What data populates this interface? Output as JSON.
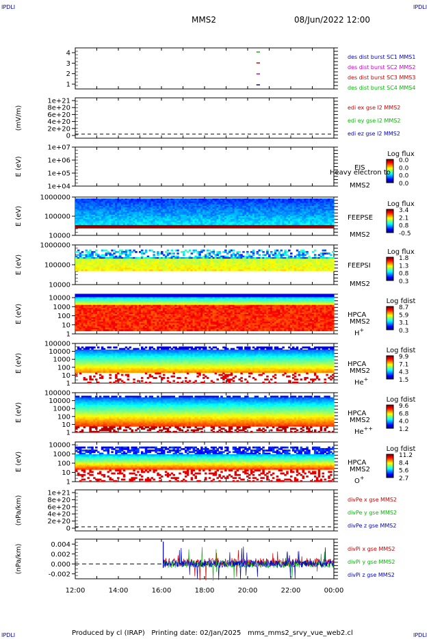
{
  "header": {
    "corner_label": "IPDLI",
    "spacecraft": "MMS2",
    "date": "08/Jun/2022 12:00"
  },
  "footer": {
    "produced_by": "Produced by cl (IRAP)",
    "printing_date": "Printing date: 02/Jan/2025",
    "file": "mms_mms2_srvy_vue_web2.cl"
  },
  "chart_data": [
    {
      "type": "line",
      "panel": "burst",
      "ylabel": "",
      "yticks": [
        "1",
        "2",
        "3",
        "4"
      ],
      "legend": [
        {
          "label": "des dist burst SC1 MMS1",
          "color": "#0000cc"
        },
        {
          "label": "des dist burst SC2 MMS2",
          "color": "#cc00cc"
        },
        {
          "label": "des dist burst SC3 MMS3",
          "color": "#cc0000"
        },
        {
          "label": "des dist burst SC4 MMS4",
          "color": "#00bb00"
        }
      ],
      "series": [
        {
          "name": "des dist burst SC1 MMS1",
          "x": [
            "20:30",
            "20:40"
          ],
          "y": [
            1,
            1
          ]
        },
        {
          "name": "des dist burst SC2 MMS2",
          "x": [
            "20:30",
            "20:40"
          ],
          "y": [
            2,
            2
          ]
        },
        {
          "name": "des dist burst SC3 MMS3",
          "x": [
            "20:30",
            "20:40"
          ],
          "y": [
            3,
            3
          ]
        },
        {
          "name": "des dist burst SC4 MMS4",
          "x": [
            "20:30",
            "20:40"
          ],
          "y": [
            4,
            4
          ]
        }
      ]
    },
    {
      "type": "line",
      "panel": "edi",
      "ylabel": "(mV/m)",
      "yticks": [
        "1e+21",
        "8e+20",
        "6e+20",
        "4e+20",
        "2e+20",
        "0"
      ],
      "legend": [
        {
          "label": "edi ex gse l2 MMS2",
          "color": "#cc0000"
        },
        {
          "label": "edi ey gse l2 MMS2",
          "color": "#00bb00"
        },
        {
          "label": "edi ez gse l2 MMS2",
          "color": "#0000cc"
        }
      ],
      "series": []
    },
    {
      "type": "heatmap",
      "panel": "eis",
      "ylabel": "E (eV)",
      "yticks": [
        "1e+07",
        "1e+06",
        "1e+05",
        "1e+04"
      ],
      "instrument": "EIS",
      "sc": "MMS2",
      "overlay_text": "Heavy electron to",
      "cbar_title": "Log flux",
      "cbar_ticks": [
        "0.0",
        "0.0",
        "0.0",
        "0.0"
      ]
    },
    {
      "type": "heatmap",
      "panel": "feepse",
      "ylabel": "E (eV)",
      "yticks": [
        "1000000",
        "100000",
        "10000"
      ],
      "instrument": "FEEPSE",
      "sc": "MMS2",
      "cbar_title": "Log flux",
      "cbar_ticks": [
        "3.4",
        "2.1",
        "0.8",
        "-0.5"
      ]
    },
    {
      "type": "heatmap",
      "panel": "feepsi",
      "ylabel": "E (eV)",
      "yticks": [
        "1000000",
        "100000",
        "10000"
      ],
      "instrument": "FEEPSI",
      "sc": "MMS2",
      "cbar_title": "Log flux",
      "cbar_ticks": [
        "1.8",
        "1.3",
        "0.8",
        "0.3"
      ]
    },
    {
      "type": "heatmap",
      "panel": "hpca_h",
      "ylabel": "E (eV)",
      "yticks": [
        "10000",
        "1000",
        "100",
        "10",
        "1"
      ],
      "instrument": "HPCA",
      "sc": "MMS2",
      "species": "H",
      "charge": "+",
      "cbar_title": "Log fdist",
      "cbar_ticks": [
        "8.7",
        "5.9",
        "3.1",
        "0.3"
      ]
    },
    {
      "type": "heatmap",
      "panel": "hpca_he1",
      "ylabel": "E (eV)",
      "yticks": [
        "100000",
        "10000",
        "1000",
        "100",
        "10",
        "1"
      ],
      "instrument": "HPCA",
      "sc": "MMS2",
      "species": "He",
      "charge": "+",
      "cbar_title": "Log fdist",
      "cbar_ticks": [
        "9.9",
        "7.1",
        "4.3",
        "1.5"
      ]
    },
    {
      "type": "heatmap",
      "panel": "hpca_he2",
      "ylabel": "E (eV)",
      "yticks": [
        "100000",
        "10000",
        "1000",
        "100",
        "10",
        "1"
      ],
      "instrument": "HPCA",
      "sc": "MMS2",
      "species": "He",
      "charge": "++",
      "cbar_title": "Log fdist",
      "cbar_ticks": [
        "9.6",
        "6.8",
        "4.0",
        "1.2"
      ]
    },
    {
      "type": "heatmap",
      "panel": "hpca_o",
      "ylabel": "E (eV)",
      "yticks": [
        "10000",
        "1000",
        "100",
        "10",
        "1"
      ],
      "instrument": "HPCA",
      "sc": "MMS2",
      "species": "O",
      "charge": "+",
      "cbar_title": "Log fdist",
      "cbar_ticks": [
        "11.2",
        "8.4",
        "5.6",
        "2.7"
      ]
    },
    {
      "type": "line",
      "panel": "divpe",
      "ylabel": "(nPa/km)",
      "yticks": [
        "1e+21",
        "8e+20",
        "6e+20",
        "4e+20",
        "2e+20",
        "0"
      ],
      "legend": [
        {
          "label": "divPe x gse MMS2",
          "color": "#cc0000"
        },
        {
          "label": "divPe y gse MMS2",
          "color": "#00bb00"
        },
        {
          "label": "divPe z gse MMS2",
          "color": "#0000cc"
        }
      ],
      "series": []
    },
    {
      "type": "line",
      "panel": "divpi",
      "ylabel": "(nPa/km)",
      "yticks": [
        "0.004",
        "0.002",
        "0.000",
        "-0.002"
      ],
      "ylim": [
        -0.003,
        0.005
      ],
      "legend": [
        {
          "label": "divPi x gse MMS2",
          "color": "#cc0000"
        },
        {
          "label": "divPi y gse MMS2",
          "color": "#00bb00"
        },
        {
          "label": "divPi z gse MMS2",
          "color": "#0000cc"
        }
      ],
      "series": [
        {
          "name": "divPi x gse MMS2",
          "x_start": "16:05",
          "x_end": "00:00",
          "typical_range": [
            -0.0005,
            0.0012
          ]
        },
        {
          "name": "divPi y gse MMS2",
          "x_start": "16:05",
          "x_end": "00:00",
          "typical_range": [
            -0.0008,
            0.0006
          ]
        },
        {
          "name": "divPi z gse MMS2",
          "x_start": "16:05",
          "x_end": "00:00",
          "typical_range": [
            -0.0007,
            0.0008
          ]
        }
      ]
    }
  ],
  "xaxis": {
    "ticks": [
      "12:00",
      "14:00",
      "16:00",
      "18:00",
      "20:00",
      "22:00",
      "00:00"
    ]
  }
}
